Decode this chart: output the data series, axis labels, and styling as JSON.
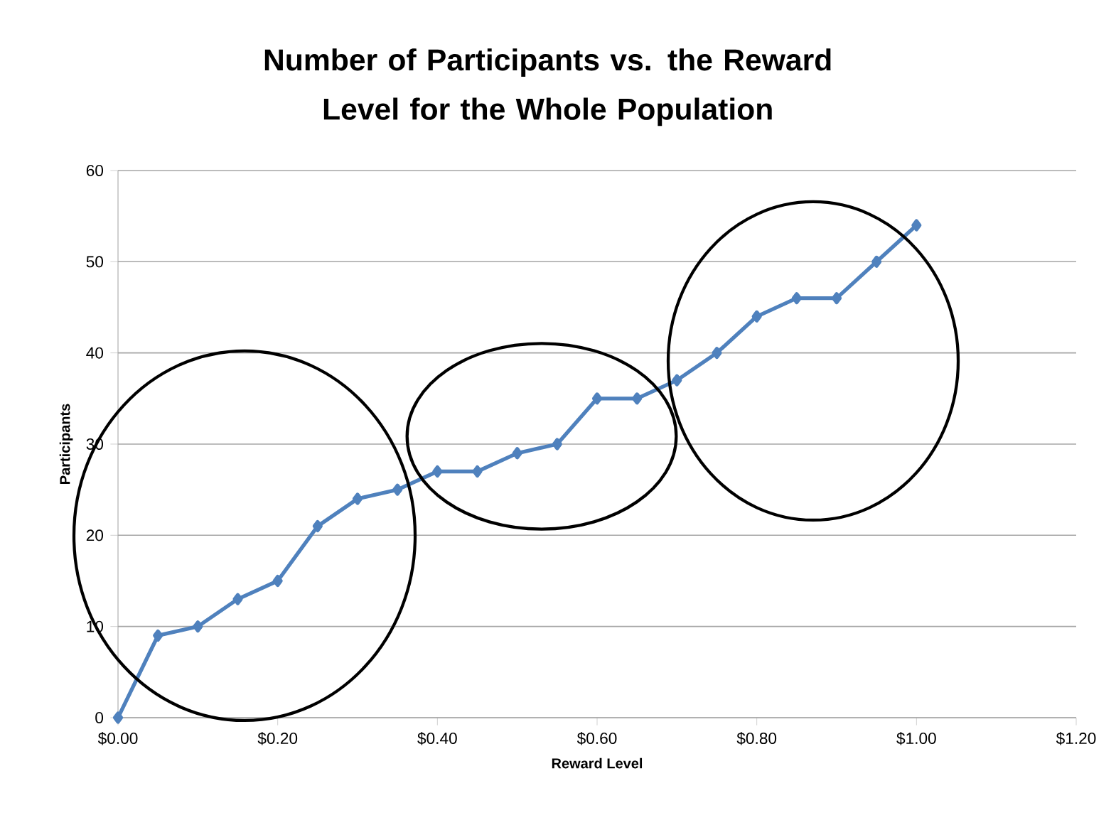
{
  "chart_data": {
    "type": "line",
    "title": "Number of Participants vs. the Reward Level for the Whole Population",
    "xlabel": "Reward Level",
    "ylabel": "Participants",
    "x": [
      0,
      0.05,
      0.1,
      0.15,
      0.2,
      0.25,
      0.3,
      0.35,
      0.4,
      0.45,
      0.5,
      0.55,
      0.6,
      0.65,
      0.7,
      0.75,
      0.8,
      0.85,
      0.9,
      0.95,
      1.0
    ],
    "values": [
      0,
      9,
      10,
      13,
      15,
      21,
      24,
      25,
      27,
      27,
      29,
      30,
      35,
      35,
      37,
      40,
      44,
      46,
      46,
      50,
      54
    ],
    "color": "#4f81bd",
    "marker": "diamond",
    "grid": "y",
    "xlim": [
      0,
      1.2
    ],
    "ylim": [
      0,
      60
    ],
    "xticks": [
      {
        "value": 0,
        "label": "$0.00"
      },
      {
        "value": 0.2,
        "label": "$0.20"
      },
      {
        "value": 0.4,
        "label": "$0.40"
      },
      {
        "value": 0.6,
        "label": "$0.60"
      },
      {
        "value": 0.8,
        "label": "$0.80"
      },
      {
        "value": 1.0,
        "label": "$1.00"
      },
      {
        "value": 1.2,
        "label": "$1.20"
      }
    ],
    "yticks": [
      0,
      10,
      20,
      30,
      40,
      50,
      60
    ]
  }
}
